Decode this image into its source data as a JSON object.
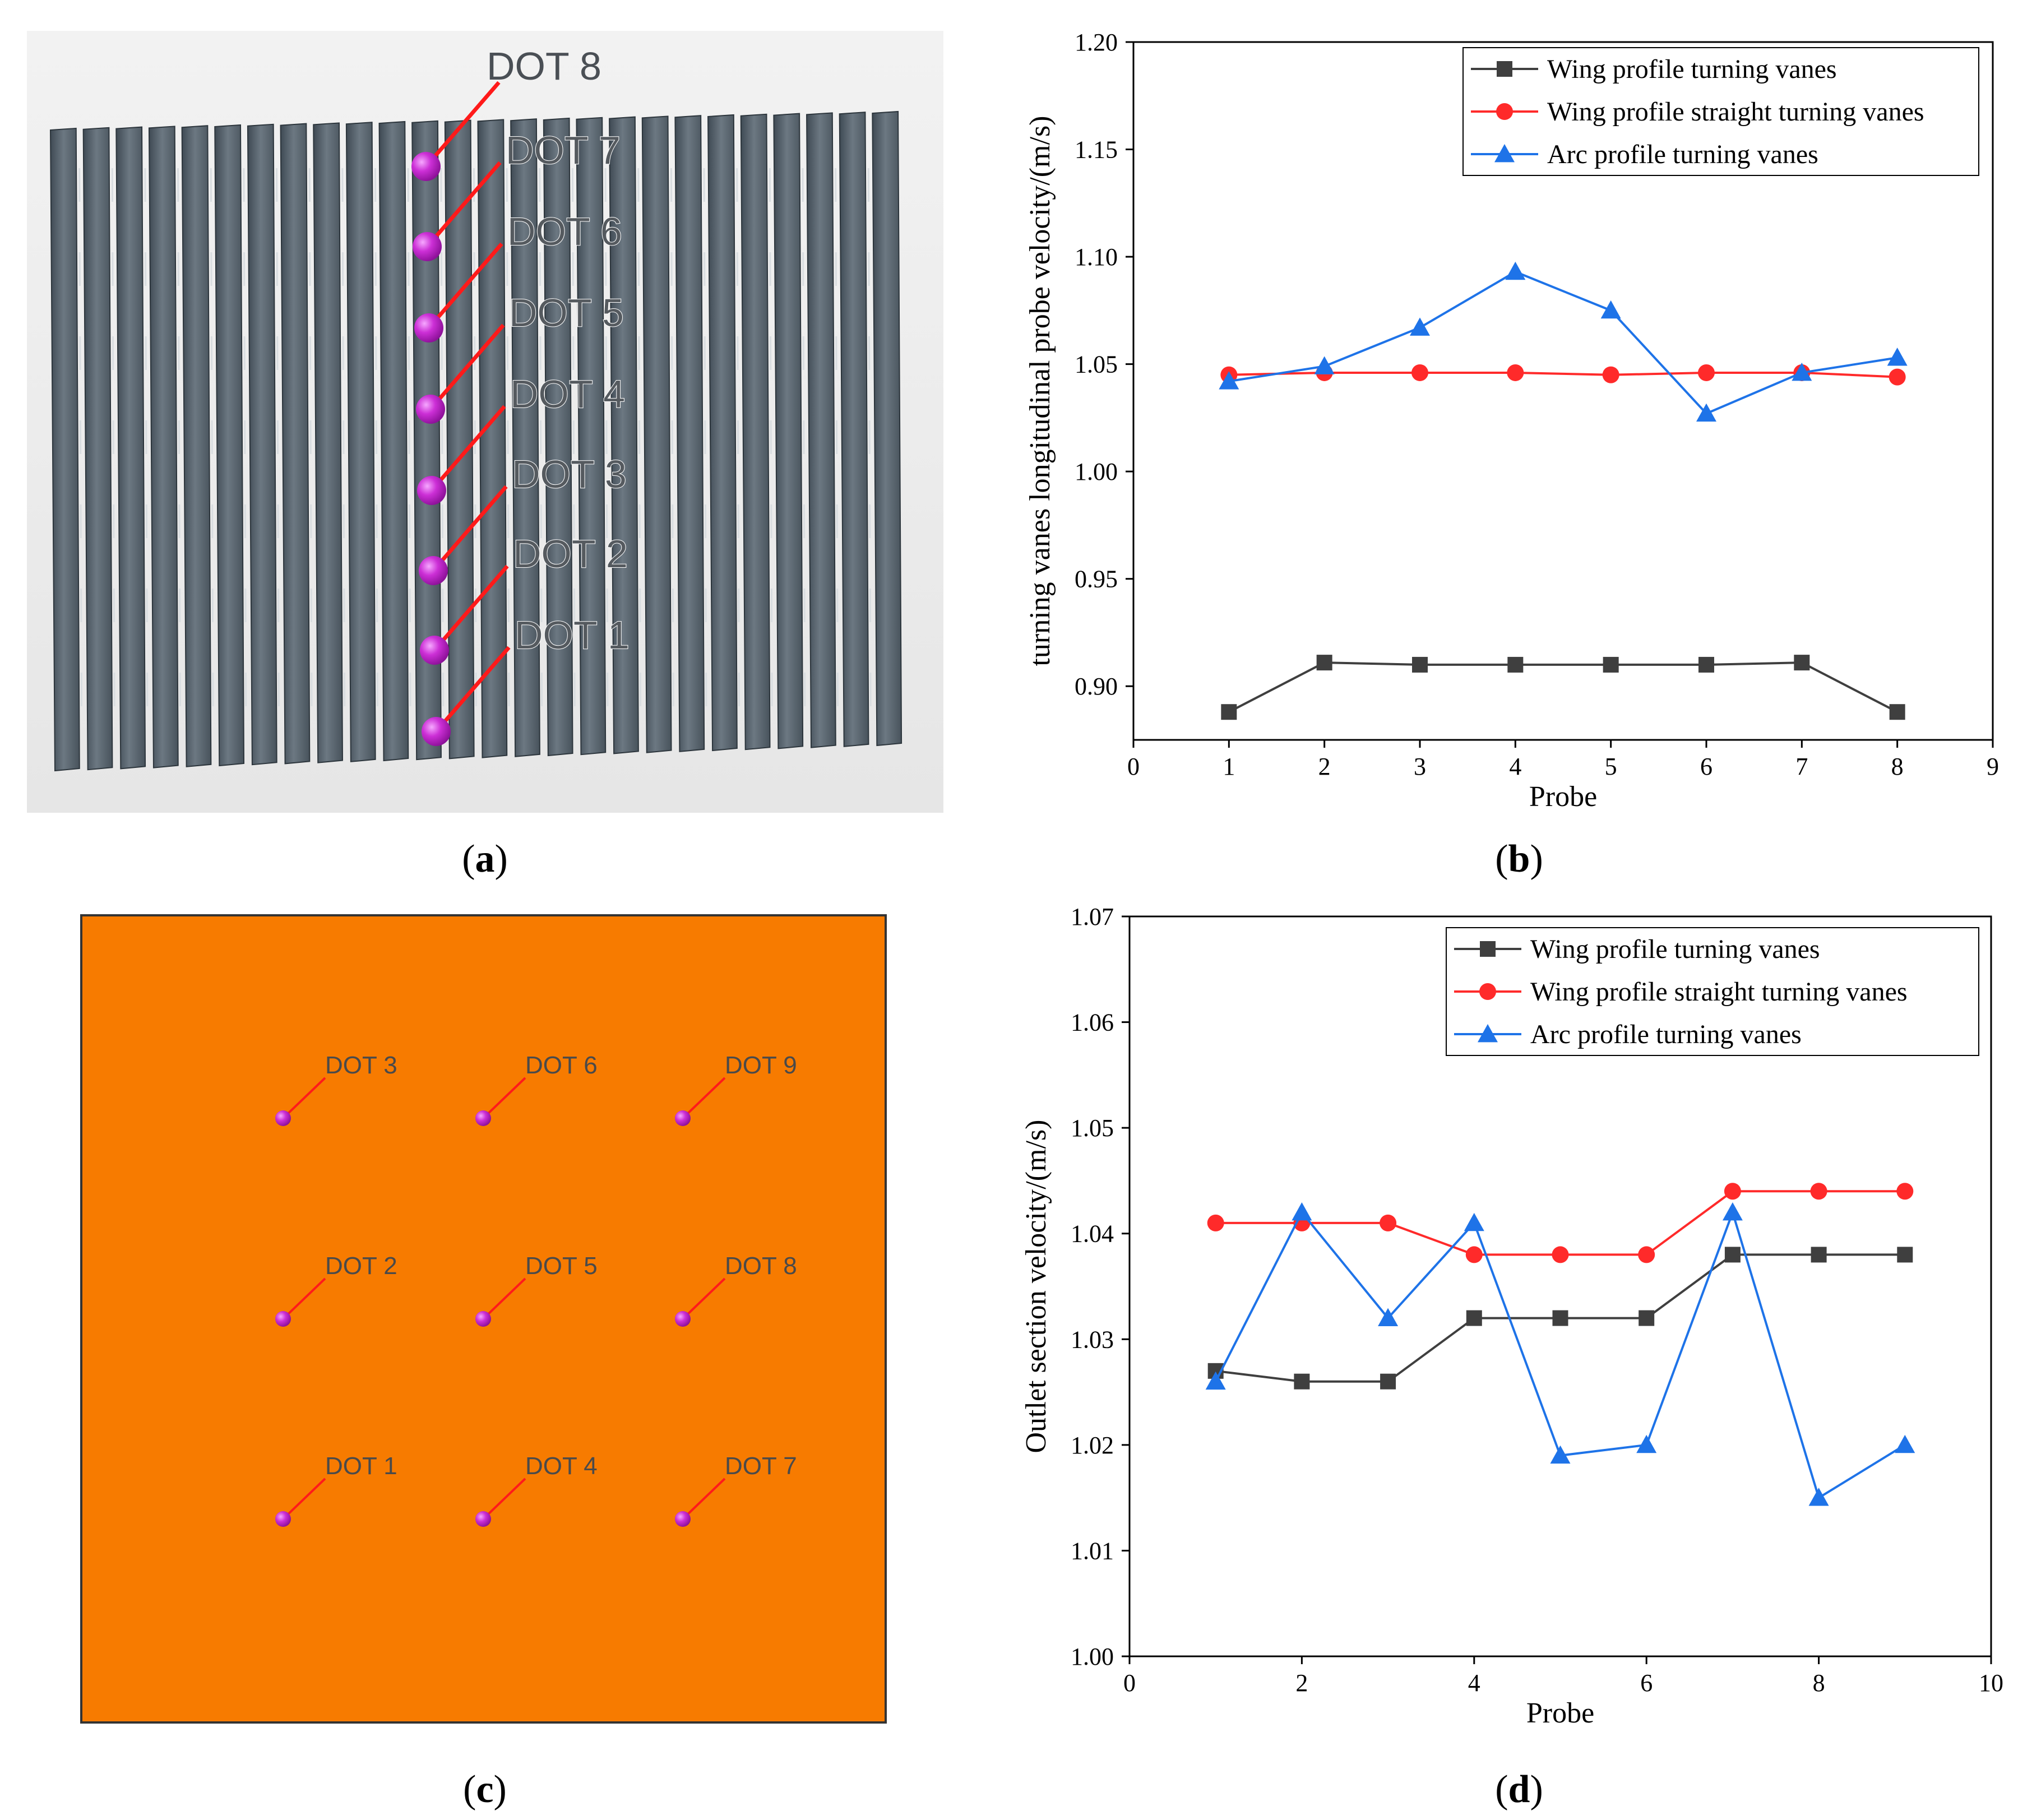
{
  "panels": {
    "a": {
      "label": "a",
      "dots": [
        "DOT 1",
        "DOT 2",
        "DOT 3",
        "DOT 4",
        "DOT 5",
        "DOT 6",
        "DOT 7",
        "DOT 8"
      ]
    },
    "b": {
      "label": "b"
    },
    "c": {
      "label": "c",
      "dots": [
        "DOT 1",
        "DOT 2",
        "DOT 3",
        "DOT 4",
        "DOT 5",
        "DOT 6",
        "DOT 7",
        "DOT 8",
        "DOT 9"
      ]
    },
    "d": {
      "label": "d"
    }
  },
  "colors": {
    "wing": "#3f3f3f",
    "straight": "#ff2a2a",
    "arc": "#1e73e8",
    "vane": "#5b6872",
    "outlet_panel": "#f77b00",
    "probe_dot": "#cc2fd6",
    "leader": "#ff1a1a"
  },
  "chart_data": [
    {
      "type": "line",
      "panel": "b",
      "xlabel": "Probe",
      "ylabel": "turning vanes longitudinal probe velocity/(m/s)",
      "xlim": [
        0,
        9
      ],
      "ylim": [
        0.875,
        1.2
      ],
      "xticks": [
        0,
        1,
        2,
        3,
        4,
        5,
        6,
        7,
        8,
        9
      ],
      "yticks": [
        0.9,
        0.95,
        1.0,
        1.05,
        1.1,
        1.15,
        1.2
      ],
      "ytick_labels": [
        "0.90",
        "0.95",
        "1.00",
        "1.05",
        "1.10",
        "1.15",
        "1.20"
      ],
      "legend_position": "top-right",
      "x": [
        1,
        2,
        3,
        4,
        5,
        6,
        7,
        8
      ],
      "series": [
        {
          "name": "Wing profile turning vanes",
          "marker": "square",
          "color": "#3f3f3f",
          "values": [
            0.888,
            0.911,
            0.91,
            0.91,
            0.91,
            0.91,
            0.911,
            0.888
          ]
        },
        {
          "name": "Wing profile straight turning vanes",
          "marker": "circle",
          "color": "#ff2a2a",
          "values": [
            1.045,
            1.046,
            1.046,
            1.046,
            1.045,
            1.046,
            1.046,
            1.044
          ]
        },
        {
          "name": "Arc profile turning vanes",
          "marker": "triangle",
          "color": "#1e73e8",
          "values": [
            1.042,
            1.049,
            1.067,
            1.093,
            1.075,
            1.027,
            1.046,
            1.053
          ]
        }
      ]
    },
    {
      "type": "line",
      "panel": "d",
      "xlabel": "Probe",
      "ylabel": "Outlet section velocity/(m/s)",
      "xlim": [
        0,
        10
      ],
      "ylim": [
        1.0,
        1.07
      ],
      "xticks": [
        0,
        2,
        4,
        6,
        8,
        10
      ],
      "yticks": [
        1.0,
        1.01,
        1.02,
        1.03,
        1.04,
        1.05,
        1.06,
        1.07
      ],
      "ytick_labels": [
        "1.00",
        "1.01",
        "1.02",
        "1.03",
        "1.04",
        "1.05",
        "1.06",
        "1.07"
      ],
      "legend_position": "top-right",
      "x": [
        1,
        2,
        3,
        4,
        5,
        6,
        7,
        8,
        9
      ],
      "series": [
        {
          "name": "Wing profile turning vanes",
          "marker": "square",
          "color": "#3f3f3f",
          "values": [
            1.027,
            1.026,
            1.026,
            1.032,
            1.032,
            1.032,
            1.038,
            1.038,
            1.038
          ]
        },
        {
          "name": "Wing profile straight turning vanes",
          "marker": "circle",
          "color": "#ff2a2a",
          "values": [
            1.041,
            1.041,
            1.041,
            1.038,
            1.038,
            1.038,
            1.044,
            1.044,
            1.044
          ]
        },
        {
          "name": "Arc profile turning vanes",
          "marker": "triangle",
          "color": "#1e73e8",
          "values": [
            1.026,
            1.042,
            1.032,
            1.041,
            1.019,
            1.02,
            1.042,
            1.015,
            1.02
          ]
        }
      ]
    }
  ]
}
